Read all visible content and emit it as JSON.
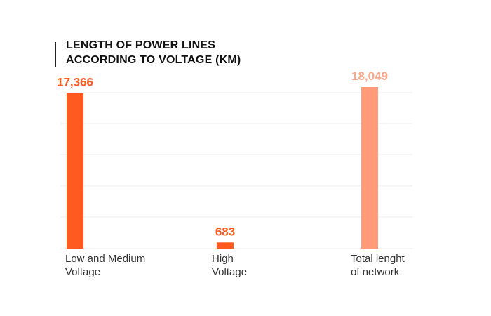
{
  "chart_data": {
    "type": "bar",
    "title_lines": [
      "LENGTH OF POWER LINES",
      "ACCORDING TO VOLTAGE (KM)"
    ],
    "categories": [
      [
        "Low and Medium",
        "Voltage"
      ],
      [
        "High",
        "Voltage"
      ],
      [
        "Total lenght",
        "of network"
      ]
    ],
    "values": [
      17366,
      683,
      18049
    ],
    "value_labels": [
      "17,366",
      "683",
      "18,049"
    ],
    "colors": [
      "#ff5a1f",
      "#ff5a1f",
      "#ff9b78"
    ],
    "label_colors": [
      "#ff5a1f",
      "#ff5a1f",
      "#ffa98a"
    ],
    "ylim": [
      0,
      18049
    ],
    "grid": true
  }
}
